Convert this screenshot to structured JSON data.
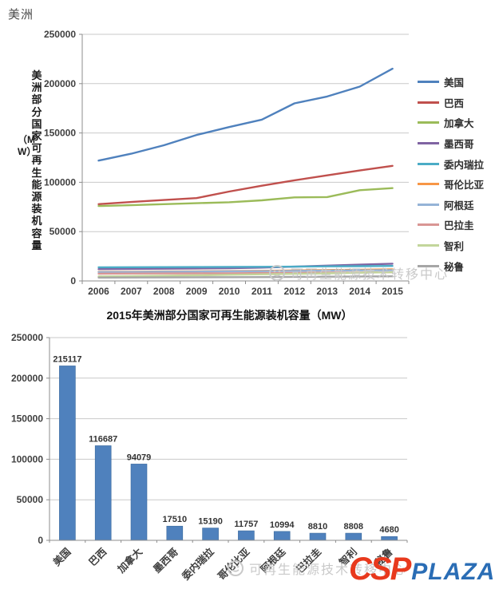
{
  "page_title": "美洲",
  "colors": {
    "grid": "#c9c9c9",
    "axis": "#8c8c8c",
    "tick_text": "#3f3f3f",
    "bar": "#4F81BD",
    "bar_border": "#3b6a9d",
    "value_label": "#333333",
    "watermark": "#c9c9c9",
    "csp_red": "#e8391d",
    "csp_blue": "#2a6db5"
  },
  "watermarks": {
    "line_chart_text": "可再生能源技术转移中心",
    "bar_chart_text": "可再生能源技术转移中心"
  },
  "logo": {
    "csp": "CSP",
    "plaza": "PLAZA"
  },
  "chart_data": [
    {
      "type": "line",
      "title": "",
      "ylabel": "美洲部分国家可再生能源装机容量",
      "ylabel_unit": "（MW）",
      "x": [
        "2006",
        "2007",
        "2008",
        "2009",
        "2010",
        "2011",
        "2012",
        "2013",
        "2014",
        "2015"
      ],
      "ylim": [
        0,
        250000
      ],
      "yticks": [
        0,
        50000,
        100000,
        150000,
        200000,
        250000
      ],
      "grid": true,
      "legend_position": "right",
      "series": [
        {
          "name": "美国",
          "color": "#4F81BD",
          "values": [
            122000,
            129000,
            137500,
            148000,
            156000,
            163500,
            180000,
            187000,
            197000,
            215117
          ]
        },
        {
          "name": "巴西",
          "color": "#C0504D",
          "values": [
            77800,
            80000,
            82000,
            84000,
            90600,
            96500,
            102000,
            107000,
            112000,
            116687
          ]
        },
        {
          "name": "加拿大",
          "color": "#9BBB59",
          "values": [
            76000,
            76800,
            77800,
            78800,
            79800,
            81700,
            84700,
            85000,
            92000,
            94079
          ]
        },
        {
          "name": "墨西哥",
          "color": "#8064A2",
          "values": [
            12000,
            12200,
            12400,
            12600,
            12900,
            13500,
            14500,
            15500,
            16500,
            17510
          ]
        },
        {
          "name": "委内瑞拉",
          "color": "#4BACC6",
          "values": [
            13800,
            13900,
            14000,
            14100,
            14200,
            14300,
            14500,
            14800,
            15000,
            15190
          ]
        },
        {
          "name": "哥伦比亚",
          "color": "#F79646",
          "values": [
            9200,
            9400,
            9600,
            9800,
            10000,
            10300,
            10700,
            11100,
            11400,
            11757
          ]
        },
        {
          "name": "阿根廷",
          "color": "#95B3D7",
          "values": [
            9000,
            9100,
            9300,
            9500,
            9700,
            9900,
            10200,
            10500,
            10750,
            10994
          ]
        },
        {
          "name": "巴拉圭",
          "color": "#D99694",
          "values": [
            7400,
            7500,
            7600,
            7700,
            7800,
            8000,
            8200,
            8400,
            8600,
            8810
          ]
        },
        {
          "name": "智利",
          "color": "#C3D69B",
          "values": [
            4600,
            4900,
            5300,
            5700,
            6200,
            6700,
            7200,
            7700,
            8300,
            8808
          ]
        },
        {
          "name": "秘鲁",
          "color": "#A6A6A6",
          "values": [
            3400,
            3500,
            3600,
            3700,
            3800,
            3900,
            4100,
            4300,
            4500,
            4680
          ]
        }
      ]
    },
    {
      "type": "bar",
      "title": "2015年美洲部分国家可再生能源装机容量（MW）",
      "categories": [
        "美国",
        "巴西",
        "加拿大",
        "墨西哥",
        "委内瑞拉",
        "哥伦比亚",
        "阿根廷",
        "巴拉圭",
        "智利",
        "秘鲁"
      ],
      "values": [
        215117,
        116687,
        94079,
        17510,
        15190,
        11757,
        10994,
        8810,
        8808,
        4680
      ],
      "bar_color": "#4F81BD",
      "ylim": [
        0,
        250000
      ],
      "yticks": [
        0,
        50000,
        100000,
        150000,
        200000,
        250000
      ],
      "grid": true,
      "xlabel": "",
      "ylabel": ""
    }
  ]
}
